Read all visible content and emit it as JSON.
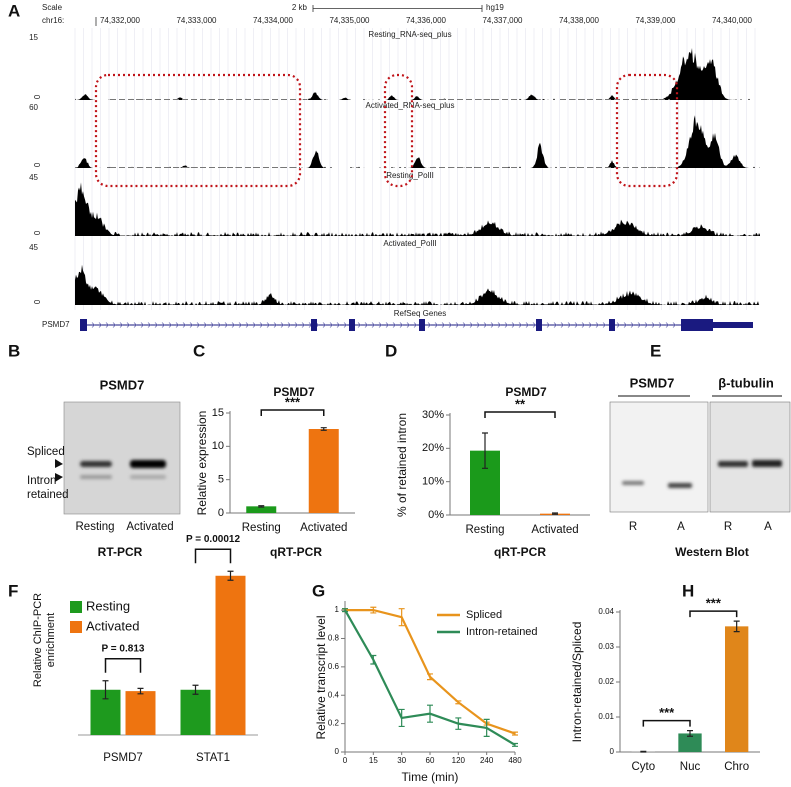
{
  "panel_labels": [
    "A",
    "B",
    "C",
    "D",
    "E",
    "F",
    "G",
    "H"
  ],
  "browser": {
    "scale_label": "Scale",
    "scale_text": "2 kb",
    "assembly": "hg19",
    "chrom": "chr16:",
    "positions": [
      "74,332,000",
      "74,333,000",
      "74,334,000",
      "74,335,000",
      "74,336,000",
      "74,337,000",
      "74,338,000",
      "74,339,000",
      "74,340,000"
    ],
    "tracks": [
      {
        "name": "Resting_RNA-seq_plus",
        "ylim": [
          0,
          15
        ]
      },
      {
        "name": "Activated_RNA-seq_plus",
        "ylim": [
          0,
          60
        ]
      },
      {
        "name": "Resting_PolII",
        "ylim": [
          0,
          45
        ]
      },
      {
        "name": "Activated_PolII",
        "ylim": [
          0,
          45
        ]
      }
    ],
    "gene_track": "RefSeq Genes",
    "gene": "PSMD7"
  },
  "gel": {
    "title": "PSMD7",
    "band_labels": [
      "Spliced",
      "Intron",
      "retained"
    ],
    "lanes": [
      "Resting",
      "Activated"
    ],
    "caption": "RT-PCR"
  },
  "blot": {
    "titles": [
      "PSMD7",
      "β-tubulin"
    ],
    "lanes": [
      "R",
      "A",
      "R",
      "A"
    ],
    "caption": "Western Blot"
  },
  "chart_data": [
    {
      "type": "bar",
      "title": "PSMD7",
      "ylabel": "Relative expression",
      "xlabel": "qRT-PCR",
      "categories": [
        "Resting",
        "Activated"
      ],
      "values": [
        1.0,
        12.6
      ],
      "errors": [
        0.1,
        0.2
      ],
      "colors": [
        "#1b9a1b",
        "#ee7410"
      ],
      "ylim": [
        0,
        15
      ],
      "yticks": [
        0,
        5,
        10,
        15
      ],
      "annotations": [
        "***"
      ]
    },
    {
      "type": "bar",
      "title": "PSMD7",
      "ylabel": "% of retained intron",
      "xlabel": "qRT-PCR",
      "categories": [
        "Resting",
        "Activated"
      ],
      "values": [
        19.3,
        0.4
      ],
      "errors": [
        5.3,
        0.2
      ],
      "colors": [
        "#1b9a1b",
        "#ee7410"
      ],
      "ylim": [
        0,
        30
      ],
      "yticks": [
        {
          "value": 0,
          "label": "0%"
        },
        {
          "value": 10,
          "label": "10%"
        },
        {
          "value": 20,
          "label": "20%"
        },
        {
          "value": 30,
          "label": "30%"
        }
      ],
      "annotations": [
        "**"
      ]
    },
    {
      "type": "grouped_bar",
      "ylabel": [
        "Relative ChIP-PCR",
        "enrichment"
      ],
      "categories": [
        "PSMD7",
        "STAT1"
      ],
      "series": [
        {
          "name": "Resting",
          "color": "#1e9a1e",
          "values": [
            1.0,
            1.0
          ],
          "errors": [
            0.2,
            0.1
          ]
        },
        {
          "name": "Activated",
          "color": "#ee7410",
          "values": [
            0.97,
            3.52
          ],
          "errors": [
            0.06,
            0.1
          ]
        }
      ],
      "ylim": [
        0,
        4.2
      ],
      "annotations": [
        "P = 0.813",
        "P = 0.00012"
      ]
    },
    {
      "type": "line",
      "ylabel": "Relative transcript level",
      "xlabel": "Time (min)",
      "categories": [
        0,
        15,
        30,
        60,
        120,
        240,
        480
      ],
      "series": [
        {
          "name": "Spliced",
          "color": "#e8941c",
          "values": [
            1.0,
            1.0,
            0.95,
            0.53,
            0.35,
            0.2,
            0.13
          ],
          "errors": [
            0.01,
            0.02,
            0.06,
            0.02,
            0.01,
            0.01,
            0.01
          ]
        },
        {
          "name": "Intron-retained",
          "color": "#2e8b57",
          "values": [
            1.0,
            0.65,
            0.24,
            0.27,
            0.2,
            0.17,
            0.05
          ],
          "errors": [
            0.01,
            0.03,
            0.06,
            0.06,
            0.04,
            0.06,
            0.01
          ]
        }
      ],
      "ylim": [
        0,
        1.05
      ],
      "yticks": [
        0,
        0.2,
        0.4,
        0.6,
        0.8,
        1
      ]
    },
    {
      "type": "bar",
      "ylabel": "Intron-retained/Spliced",
      "categories": [
        "Cyto",
        "Nuc",
        "Chro"
      ],
      "values": [
        0.0001,
        0.0053,
        0.0359
      ],
      "errors": [
        0.0001,
        0.0008,
        0.0015
      ],
      "colors": [
        "#9e9e9e",
        "#2e8b57",
        "#e0861a"
      ],
      "ylim": [
        0,
        0.04
      ],
      "yticks": [
        0,
        0.01,
        0.02,
        0.03,
        0.04
      ],
      "annotations": [
        "***",
        "***"
      ]
    }
  ]
}
